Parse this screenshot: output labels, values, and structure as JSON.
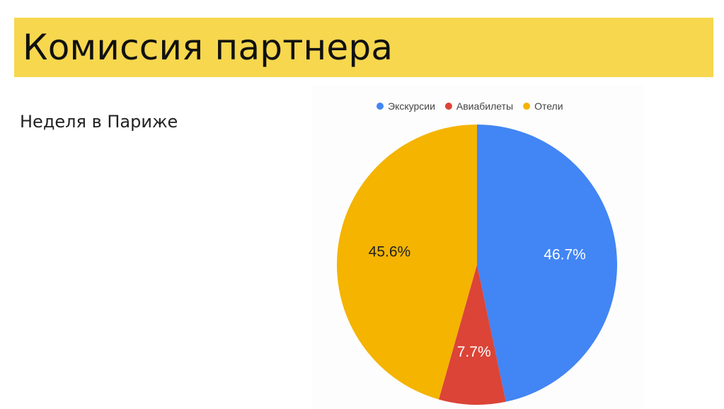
{
  "slide": {
    "title": "Комиссия партнера",
    "subtitle": "Неделя в Париже"
  },
  "chart_data": {
    "type": "pie",
    "categories": [
      "Экскурсии",
      "Авиабилеты",
      "Отели"
    ],
    "values": [
      46.7,
      7.7,
      45.6
    ],
    "data_labels": [
      "46.7%",
      "7.7%",
      "45.6%"
    ],
    "colors": [
      "#4285f4",
      "#db4437",
      "#f4b400"
    ],
    "label_colors": [
      "#ffffff",
      "#ffffff",
      "#222222"
    ],
    "legend_position": "top",
    "start_angle_deg": 0,
    "direction": "clockwise"
  }
}
